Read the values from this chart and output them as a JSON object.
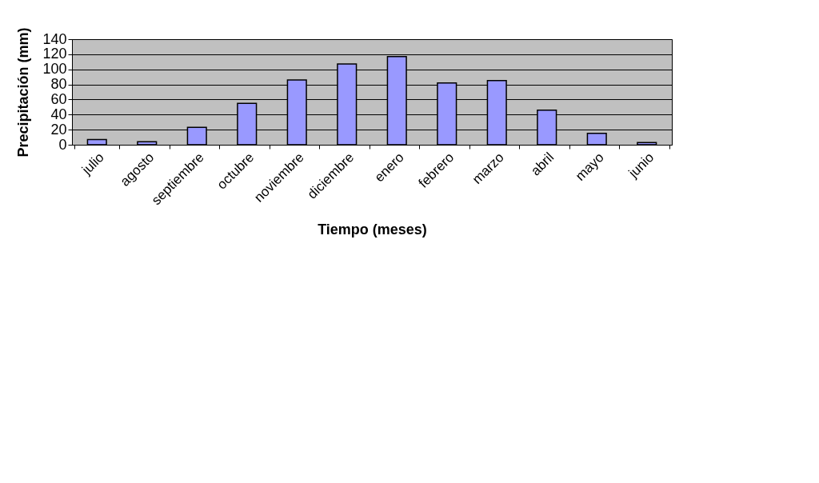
{
  "chart_data": {
    "type": "bar",
    "xlabel": "Tiempo (meses)",
    "ylabel": "Precipitación (mm)",
    "categories": [
      "julio",
      "agosto",
      "septiembre",
      "octubre",
      "noviembre",
      "diciembre",
      "enero",
      "febrero",
      "marzo",
      "abril",
      "mayo",
      "junio"
    ],
    "values": [
      7,
      4,
      23,
      55,
      86,
      107,
      117,
      82,
      85,
      46,
      15,
      3
    ],
    "color": "#9999ff",
    "ylim": [
      0,
      140
    ],
    "yticks": [
      0,
      20,
      40,
      60,
      80,
      100,
      120,
      140
    ],
    "grid": "y"
  }
}
